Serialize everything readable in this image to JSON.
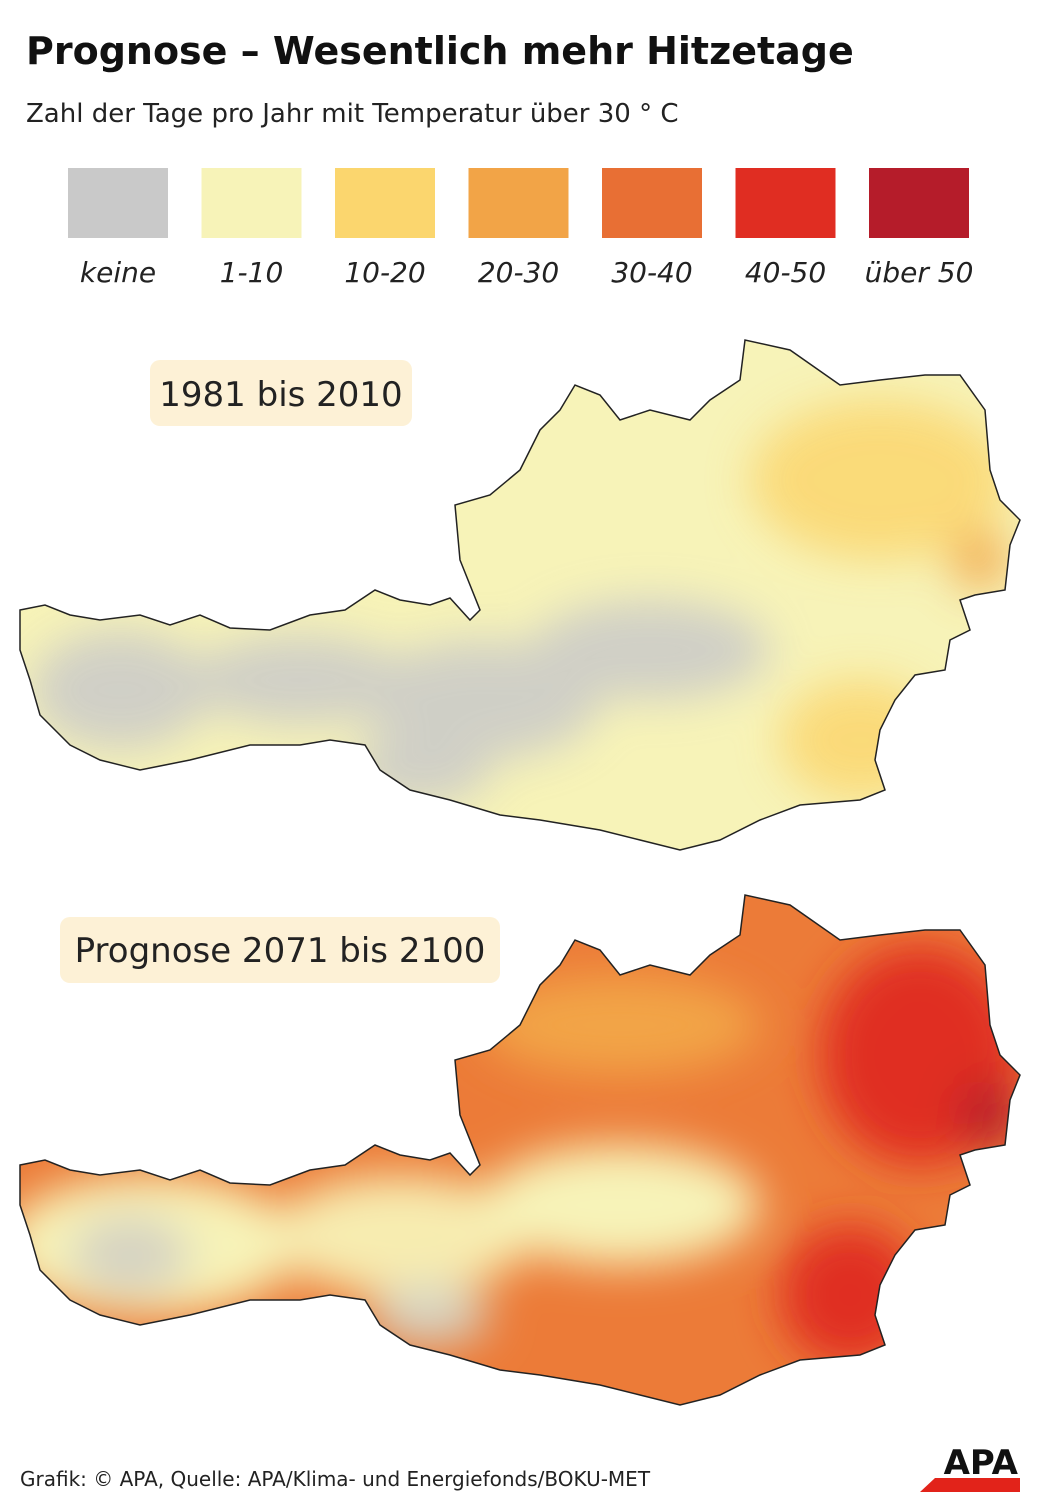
{
  "header": {
    "title": "Prognose – Wesentlich mehr Hitzetage",
    "subtitle": "Zahl der Tage pro Jahr mit Temperatur über 30 ° C"
  },
  "legend": [
    {
      "label": "keine",
      "color": "#c9c9c9"
    },
    {
      "label": "1-10",
      "color": "#f7f3b8"
    },
    {
      "label": "10-20",
      "color": "#fbd66e"
    },
    {
      "label": "20-30",
      "color": "#f2a447"
    },
    {
      "label": "30-40",
      "color": "#e86f34"
    },
    {
      "label": "40-50",
      "color": "#e02d22"
    },
    {
      "label": "über 50",
      "color": "#b51c2a"
    }
  ],
  "maps": [
    {
      "label": "1981 bis 2010"
    },
    {
      "label": "Prognose 2071 bis 2100"
    }
  ],
  "footer": {
    "source": "Grafik: © APA, Quelle: APA/Klima- und Energiefonds/BOKU-MET",
    "logo": "APA"
  }
}
